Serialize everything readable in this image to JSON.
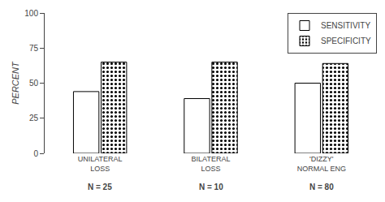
{
  "chart_data": {
    "type": "bar",
    "categories": [
      "UNILATERAL\nLOSS",
      "BILATERAL\nLOSS",
      "'DIZZY'\nNORMAL ENG"
    ],
    "series": [
      {
        "name": "SENSITIVITY",
        "color": "#ffffff",
        "values": [
          44,
          39,
          50
        ]
      },
      {
        "name": "SPECIFICITY",
        "color": "#b0b0b0",
        "values": [
          65,
          65,
          64
        ]
      }
    ],
    "annotations": [
      {
        "category": "UNILATERAL\nLOSS",
        "text": "N = 25"
      },
      {
        "category": "BILATERAL\nLOSS",
        "text": "N = 10"
      },
      {
        "category": "'DIZZY'\nNORMAL ENG",
        "text": "N = 80"
      }
    ],
    "y_label": "PERCENT",
    "ylim": [
      0,
      100
    ],
    "yticks": [
      0,
      25,
      50,
      75,
      100
    ],
    "grid": false,
    "legend": "upper right"
  }
}
